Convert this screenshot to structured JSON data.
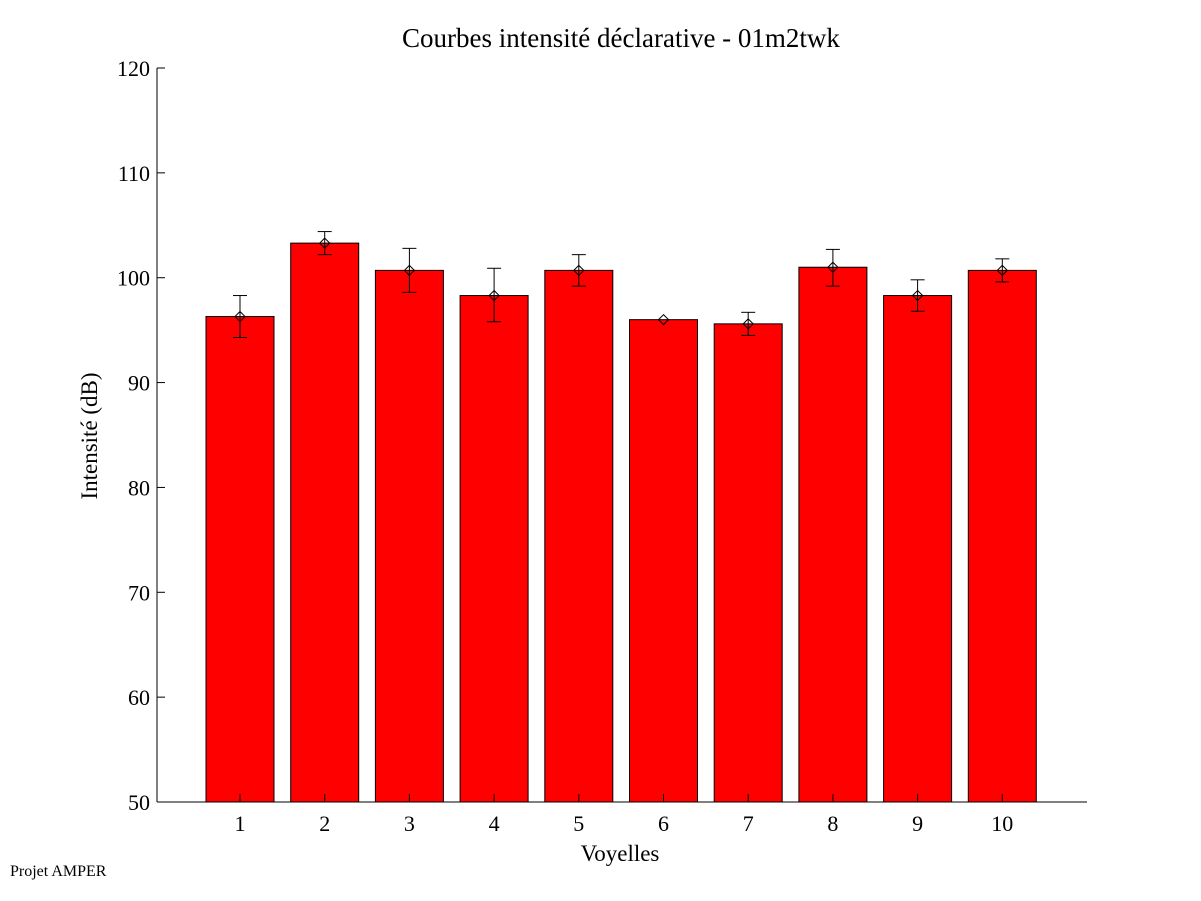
{
  "footer": {
    "credit": "Projet AMPER"
  },
  "chart_data": {
    "type": "bar",
    "title": "Courbes intensité déclarative - 01m2twk",
    "xlabel": "Voyelles",
    "ylabel": "Intensité (dB)",
    "categories": [
      "1",
      "2",
      "3",
      "4",
      "5",
      "6",
      "7",
      "8",
      "9",
      "10"
    ],
    "values": [
      96.3,
      103.3,
      100.7,
      98.3,
      100.7,
      96.0,
      95.6,
      101.0,
      98.3,
      100.7
    ],
    "error_low": [
      94.3,
      102.2,
      98.6,
      95.8,
      99.2,
      96.0,
      94.5,
      99.2,
      96.8,
      99.6
    ],
    "error_high": [
      98.3,
      104.4,
      102.8,
      100.9,
      102.2,
      96.0,
      96.7,
      102.7,
      99.8,
      101.8
    ],
    "ylim": [
      50,
      120
    ],
    "yticks": [
      50,
      60,
      70,
      80,
      90,
      100,
      110,
      120
    ],
    "grid": false,
    "bar_color": "#ff0000",
    "marker": "diamond"
  }
}
